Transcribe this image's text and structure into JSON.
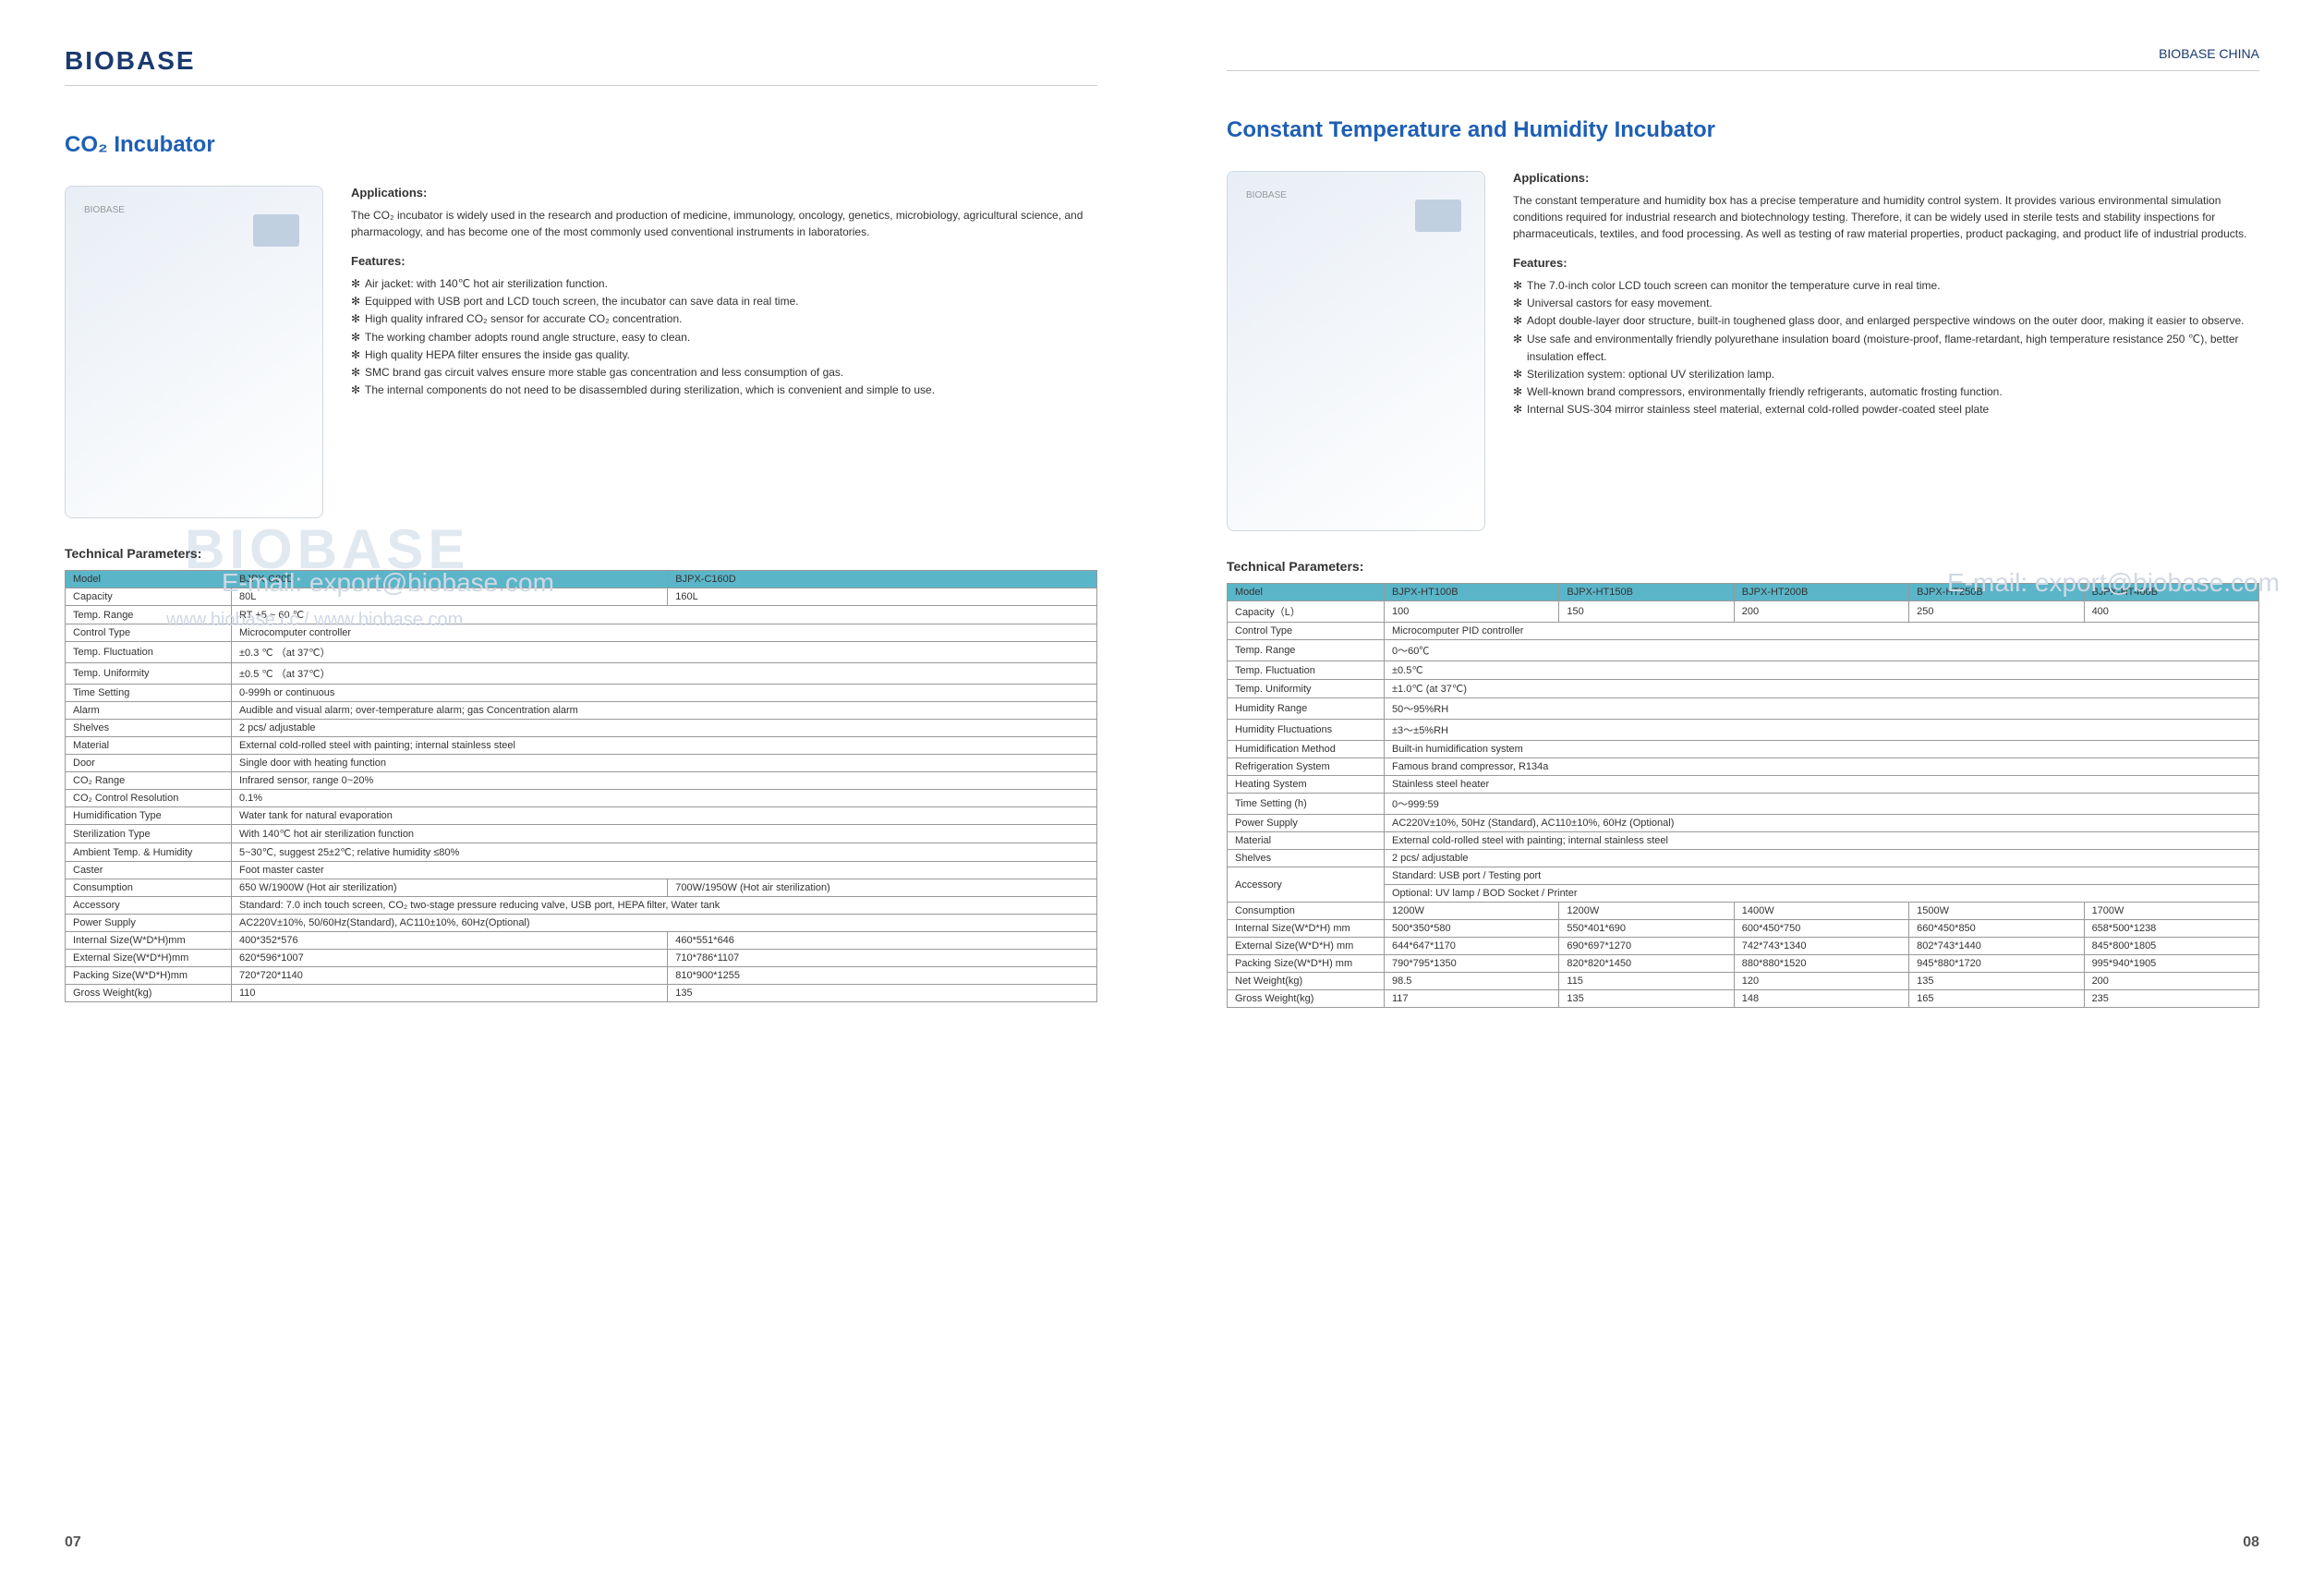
{
  "logo": "BIOBASE",
  "brandRight": "BIOBASE",
  "brandRightSuffix": " CHINA",
  "wmEmail": "E-mail: export@biobase.com",
  "wmUrl": "www.biobase.cc / www.biobase.com",
  "pageLeft": "07",
  "pageRight": "08",
  "p1": {
    "title": "CO₂ Incubator",
    "appLabel": "Applications:",
    "appText": "The CO₂ incubator is widely used in the research and production of medicine, immunology, oncology, genetics, microbiology, agricultural science, and pharmacology, and has become one of the most commonly used conventional instruments in laboratories.",
    "featLabel": "Features:",
    "features": [
      "Air jacket: with 140℃ hot air sterilization function.",
      "Equipped with USB port and LCD touch screen, the incubator can save data in real time.",
      "High quality infrared CO₂ sensor for accurate CO₂ concentration.",
      "The working chamber adopts round angle structure, easy to clean.",
      "High quality HEPA filter ensures the inside gas quality.",
      "SMC brand gas circuit valves ensure more stable gas concentration and less consumption of gas.",
      "The internal components do not need to be disassembled during sterilization, which is convenient and simple to use."
    ],
    "paramsLabel": "Technical Parameters:",
    "table": [
      [
        "Model",
        "BJPX-C80D",
        "BJPX-C160D"
      ],
      [
        "Capacity",
        "80L",
        "160L"
      ],
      [
        "Temp. Range",
        "RT +5 ~ 60 ℃",
        ""
      ],
      [
        "Control Type",
        "Microcomputer controller",
        ""
      ],
      [
        "Temp. Fluctuation",
        "±0.3 ℃ （at 37℃）",
        ""
      ],
      [
        "Temp. Uniformity",
        "±0.5 ℃ （at 37℃）",
        ""
      ],
      [
        "Time Setting",
        "0-999h or continuous",
        ""
      ],
      [
        "Alarm",
        "Audible and visual alarm; over-temperature alarm; gas Concentration alarm",
        ""
      ],
      [
        "Shelves",
        "2 pcs/ adjustable",
        ""
      ],
      [
        "Material",
        "External cold-rolled steel with painting; internal stainless steel",
        ""
      ],
      [
        "Door",
        "Single door with heating function",
        ""
      ],
      [
        "CO₂ Range",
        "Infrared sensor, range 0~20%",
        ""
      ],
      [
        "CO₂ Control Resolution",
        "0.1%",
        ""
      ],
      [
        "Humidification Type",
        "Water tank for natural evaporation",
        ""
      ],
      [
        "Sterilization Type",
        "With 140℃ hot air sterilization function",
        ""
      ],
      [
        "Ambient Temp. & Humidity",
        "5~30℃, suggest 25±2℃; relative humidity ≤80%",
        ""
      ],
      [
        "Caster",
        "Foot master caster",
        ""
      ],
      [
        "Consumption",
        "650 W/1900W (Hot air sterilization)",
        "700W/1950W (Hot air sterilization)"
      ],
      [
        "Accessory",
        "Standard: 7.0 inch touch screen, CO₂ two-stage pressure reducing valve, USB port, HEPA filter, Water tank",
        ""
      ],
      [
        "Power Supply",
        "AC220V±10%, 50/60Hz(Standard), AC110±10%, 60Hz(Optional)",
        ""
      ],
      [
        "Internal Size(W*D*H)mm",
        "400*352*576",
        "460*551*646"
      ],
      [
        "External Size(W*D*H)mm",
        "620*596*1007",
        "710*786*1107"
      ],
      [
        "Packing Size(W*D*H)mm",
        "720*720*1140",
        "810*900*1255"
      ],
      [
        "Gross Weight(kg)",
        "110",
        "135"
      ]
    ]
  },
  "p2": {
    "title": "Constant Temperature and Humidity Incubator",
    "appLabel": "Applications:",
    "appText": "The constant temperature and humidity box has a precise temperature and humidity control system. It provides various environmental simulation conditions required for industrial research and biotechnology testing. Therefore, it can be widely used in sterile tests and stability inspections for pharmaceuticals, textiles, and food processing. As well as testing of raw material properties, product packaging, and product life of industrial products.",
    "featLabel": "Features:",
    "features": [
      "The 7.0-inch color LCD touch screen can monitor the temperature curve in real time.",
      "Universal castors for easy movement.",
      "Adopt double-layer door structure, built-in toughened glass door, and enlarged perspective windows on the outer door, making it easier to observe.",
      "Use safe and environmentally friendly polyurethane insulation board (moisture-proof, flame-retardant, high temperature resistance 250 ℃), better insulation effect.",
      "Sterilization system: optional UV sterilization lamp.",
      "Well-known brand compressors, environmentally friendly refrigerants, automatic frosting function.",
      "Internal SUS-304 mirror stainless steel material, external cold-rolled powder-coated steel plate"
    ],
    "paramsLabel": "Technical Parameters:",
    "cols": [
      "Model",
      "BJPX-HT100B",
      "BJPX-HT150B",
      "BJPX-HT200B",
      "BJPX-HT250B",
      "BJPX-HT400B"
    ],
    "rows": [
      [
        "Capacity（L）",
        "100",
        "150",
        "200",
        "250",
        "400"
      ],
      [
        "Control Type",
        "Microcomputer PID controller"
      ],
      [
        "Temp. Range",
        "0～60℃"
      ],
      [
        "Temp. Fluctuation",
        "±0.5℃"
      ],
      [
        "Temp. Uniformity",
        "±1.0℃ (at 37℃)"
      ],
      [
        "Humidity Range",
        "50～95%RH"
      ],
      [
        "Humidity Fluctuations",
        "±3～±5%RH"
      ],
      [
        "Humidification Method",
        "Built-in humidification system"
      ],
      [
        "Refrigeration System",
        "Famous brand compressor, R134a"
      ],
      [
        "Heating System",
        "Stainless steel heater"
      ],
      [
        "Time Setting (h)",
        "0～999:59"
      ],
      [
        "Power Supply",
        "AC220V±10%, 50Hz (Standard), AC110±10%, 60Hz (Optional)"
      ],
      [
        "Material",
        "External cold-rolled steel with painting; internal stainless steel"
      ],
      [
        "Shelves",
        "2 pcs/ adjustable"
      ],
      [
        "Accessory",
        "Standard: USB port / Testing port"
      ],
      [
        "",
        "Optional: UV lamp / BOD Socket / Printer"
      ],
      [
        "Consumption",
        "1200W",
        "1200W",
        "1400W",
        "1500W",
        "1700W"
      ],
      [
        "Internal Size(W*D*H) mm",
        "500*350*580",
        "550*401*690",
        "600*450*750",
        "660*450*850",
        "658*500*1238"
      ],
      [
        "External Size(W*D*H) mm",
        "644*647*1170",
        "690*697*1270",
        "742*743*1340",
        "802*743*1440",
        "845*800*1805"
      ],
      [
        "Packing Size(W*D*H) mm",
        "790*795*1350",
        "820*820*1450",
        "880*880*1520",
        "945*880*1720",
        "995*940*1905"
      ],
      [
        "Net Weight(kg)",
        "98.5",
        "115",
        "120",
        "135",
        "200"
      ],
      [
        "Gross Weight(kg)",
        "117",
        "135",
        "148",
        "165",
        "235"
      ]
    ]
  }
}
